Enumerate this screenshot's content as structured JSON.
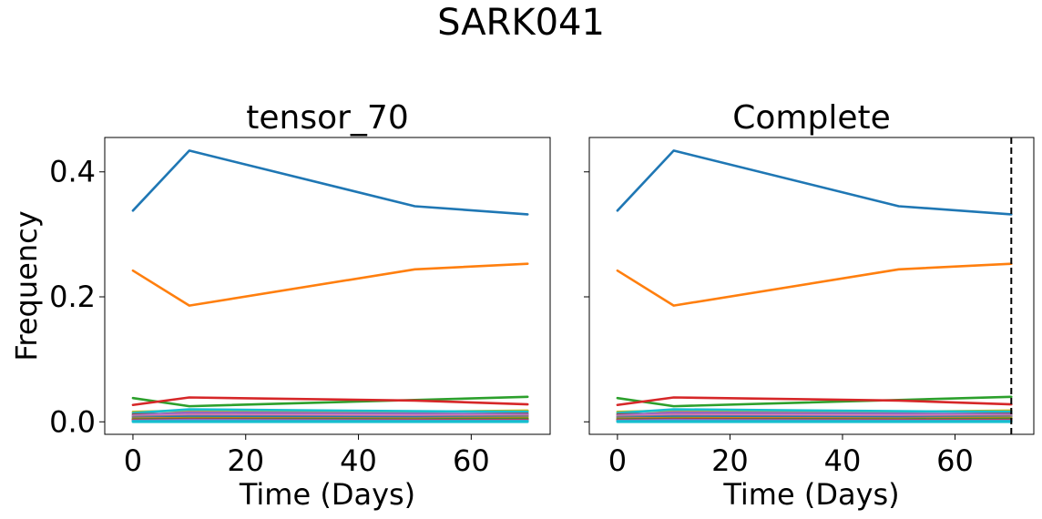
{
  "figure": {
    "title": "SARK041"
  },
  "colors": {
    "dashed_line": "#000000",
    "series_palette": [
      "#1f77b4",
      "#ff7f0e",
      "#2ca02c",
      "#d62728",
      "#9467bd",
      "#8c564b",
      "#e377c2",
      "#7f7f7f",
      "#bcbd22",
      "#17becf"
    ]
  },
  "chart_data": [
    {
      "type": "line",
      "title": "tensor_70",
      "xlabel": "Time (Days)",
      "ylabel": "Frequency",
      "xlim": [
        -5,
        74
      ],
      "ylim": [
        -0.02,
        0.455
      ],
      "xticks": [
        0,
        20,
        40,
        60
      ],
      "xtick_labels": [
        "0",
        "20",
        "40",
        "60"
      ],
      "yticks": [
        0.0,
        0.2,
        0.4
      ],
      "ytick_labels": [
        "0.0",
        "0.2",
        "0.4"
      ],
      "grid": false,
      "x": [
        0,
        10,
        50,
        70
      ],
      "series": [
        {
          "values": [
            0.338,
            0.434,
            0.345,
            0.332
          ],
          "color": "#1f77b4"
        },
        {
          "values": [
            0.242,
            0.186,
            0.244,
            0.253
          ],
          "color": "#ff7f0e"
        },
        {
          "values": [
            0.038,
            0.025,
            0.035,
            0.04
          ],
          "color": "#2ca02c"
        },
        {
          "values": [
            0.027,
            0.039,
            0.034,
            0.028
          ],
          "color": "#d62728"
        },
        {
          "values": [
            0.016,
            0.018,
            0.016,
            0.018
          ],
          "color": "#bcbd22"
        },
        {
          "values": [
            0.014,
            0.02,
            0.017,
            0.016
          ],
          "color": "#17becf"
        },
        {
          "values": [
            0.012,
            0.013,
            0.012,
            0.013
          ],
          "color": "#8c564b"
        },
        {
          "values": [
            0.01,
            0.015,
            0.013,
            0.012
          ],
          "color": "#9467bd"
        },
        {
          "values": [
            0.009,
            0.011,
            0.01,
            0.01
          ],
          "color": "#e377c2"
        },
        {
          "values": [
            0.008,
            0.009,
            0.008,
            0.009
          ],
          "color": "#7f7f7f"
        },
        {
          "values": [
            0.006,
            0.008,
            0.007,
            0.006
          ],
          "color": "#1f77b4"
        },
        {
          "values": [
            0.005,
            0.006,
            0.005,
            0.006
          ],
          "color": "#ff7f0e"
        },
        {
          "values": [
            0.004,
            0.005,
            0.004,
            0.005
          ],
          "color": "#2ca02c"
        },
        {
          "values": [
            0.003,
            0.004,
            0.003,
            0.003
          ],
          "color": "#d62728"
        },
        {
          "values": [
            0.002,
            0.003,
            0.002,
            0.002
          ],
          "color": "#9467bd"
        },
        {
          "values": [
            0.001,
            0.001,
            0.001,
            0.001
          ],
          "color": "#17becf"
        },
        {
          "values": [
            0.0,
            0.0,
            0.0,
            0.0
          ],
          "color": "#17becf"
        }
      ]
    },
    {
      "type": "line",
      "title": "Complete",
      "xlabel": "Time (Days)",
      "ylabel": "",
      "xlim": [
        -5,
        74
      ],
      "ylim": [
        -0.02,
        0.455
      ],
      "xticks": [
        0,
        20,
        40,
        60
      ],
      "xtick_labels": [
        "0",
        "20",
        "40",
        "60"
      ],
      "yticks": [
        0.0,
        0.2,
        0.4
      ],
      "ytick_labels": [
        "",
        "",
        ""
      ],
      "grid": false,
      "vline_x": 70,
      "vline_style": "dashed",
      "x": [
        0,
        10,
        50,
        70
      ],
      "series": [
        {
          "values": [
            0.338,
            0.434,
            0.345,
            0.332
          ],
          "color": "#1f77b4"
        },
        {
          "values": [
            0.242,
            0.186,
            0.244,
            0.253
          ],
          "color": "#ff7f0e"
        },
        {
          "values": [
            0.038,
            0.025,
            0.035,
            0.04
          ],
          "color": "#2ca02c"
        },
        {
          "values": [
            0.027,
            0.039,
            0.034,
            0.028
          ],
          "color": "#d62728"
        },
        {
          "values": [
            0.016,
            0.018,
            0.016,
            0.018
          ],
          "color": "#bcbd22"
        },
        {
          "values": [
            0.014,
            0.02,
            0.017,
            0.016
          ],
          "color": "#17becf"
        },
        {
          "values": [
            0.012,
            0.013,
            0.012,
            0.013
          ],
          "color": "#8c564b"
        },
        {
          "values": [
            0.01,
            0.015,
            0.013,
            0.012
          ],
          "color": "#9467bd"
        },
        {
          "values": [
            0.009,
            0.011,
            0.01,
            0.01
          ],
          "color": "#e377c2"
        },
        {
          "values": [
            0.008,
            0.009,
            0.008,
            0.009
          ],
          "color": "#7f7f7f"
        },
        {
          "values": [
            0.006,
            0.008,
            0.007,
            0.006
          ],
          "color": "#1f77b4"
        },
        {
          "values": [
            0.005,
            0.006,
            0.005,
            0.006
          ],
          "color": "#ff7f0e"
        },
        {
          "values": [
            0.004,
            0.005,
            0.004,
            0.005
          ],
          "color": "#2ca02c"
        },
        {
          "values": [
            0.003,
            0.004,
            0.003,
            0.003
          ],
          "color": "#d62728"
        },
        {
          "values": [
            0.002,
            0.003,
            0.002,
            0.002
          ],
          "color": "#9467bd"
        },
        {
          "values": [
            0.001,
            0.001,
            0.001,
            0.001
          ],
          "color": "#17becf"
        },
        {
          "values": [
            0.0,
            0.0,
            0.0,
            0.0
          ],
          "color": "#17becf"
        }
      ]
    }
  ]
}
